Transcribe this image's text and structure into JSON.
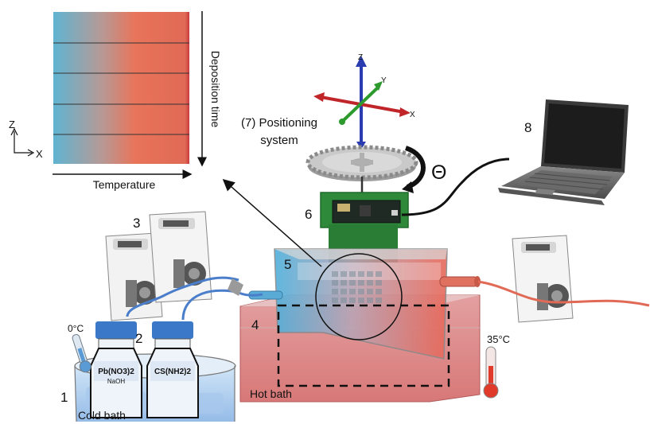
{
  "gradient_panel": {
    "xlabel": "Temperature",
    "ylabel": "Deposition time",
    "axis_z": "Z",
    "axis_x": "X",
    "colors": {
      "cold": "#5fb4d2",
      "hot": "#e8745a",
      "edge": "#c9383e"
    },
    "bands": 5
  },
  "positioning": {
    "line1": "(7) Positioning",
    "line2": "system",
    "axis_z": "Z",
    "axis_y": "Y",
    "axis_x": "X",
    "rotation": "Θ",
    "colors": {
      "z": "#2a3cb0",
      "y": "#2d9a2d",
      "x": "#c0252a"
    }
  },
  "temperatures": {
    "cold": "0°C",
    "hot": "35°C"
  },
  "baths": {
    "cold": "Cold bath",
    "hot": "Hot bath"
  },
  "bottles": {
    "left_label": "Pb(NO3)2",
    "left_sub": "NaOH",
    "right_label": "CS(NH2)2"
  },
  "numbers": {
    "n1": "1",
    "n2": "2",
    "n3": "3",
    "n4": "4",
    "n5": "5",
    "n6": "6",
    "n8": "8"
  }
}
